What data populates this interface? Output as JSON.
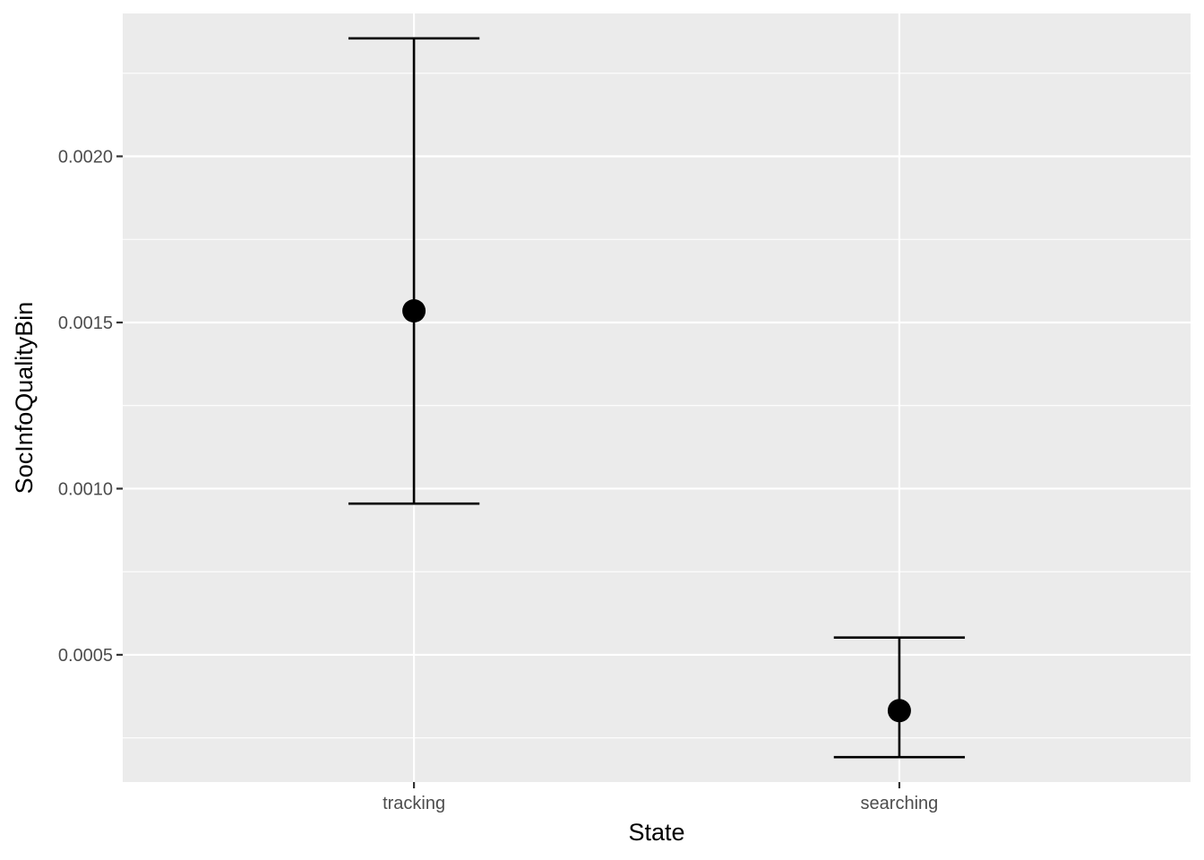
{
  "chart_data": {
    "type": "pointrange",
    "categories": [
      "tracking",
      "searching"
    ],
    "series": [
      {
        "points": [
          {
            "x": "tracking",
            "y": 0.001535,
            "ymin": 0.000955,
            "ymax": 0.002355
          },
          {
            "x": "searching",
            "y": 0.000332,
            "ymin": 0.000192,
            "ymax": 0.000552
          }
        ]
      }
    ],
    "xlabel": "State",
    "ylabel": "SocInfoQualityBin",
    "y_ticks": [
      0.0005,
      0.001,
      0.0015,
      0.002
    ],
    "y_tick_labels": [
      "0.0005",
      "0.0010",
      "0.0015",
      "0.0020"
    ],
    "ylim": [
      0.000117,
      0.00243
    ],
    "grid": true,
    "panel_color": "#ebebeb",
    "grid_color": "#ffffff",
    "mark_color": "#000000"
  }
}
